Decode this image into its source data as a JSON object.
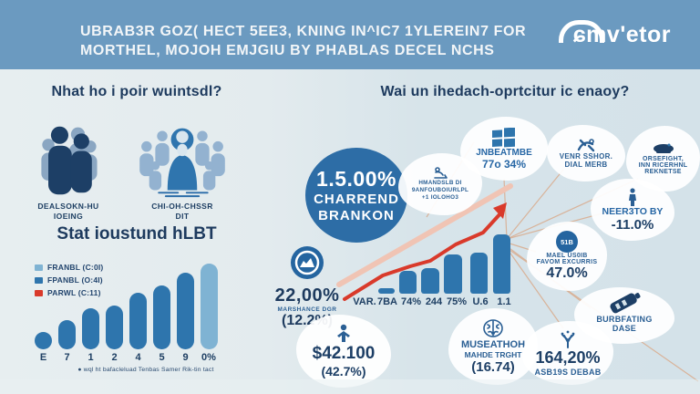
{
  "header": {
    "line1": "UBRAB3R GOZ( HECT 5EE3, KNING IN^IC7 1YLEREIN7 FOR",
    "line2": "MORTHEL, MOJOH EMJGIU BY PHABLAS DECEL NCHS",
    "logo_text": "ɕmv'etor"
  },
  "left": {
    "title": "Nhat ho i poir wuintsdl?",
    "figures": [
      {
        "icon": "people-group-icon",
        "label_line1": "DEALSOKN-HU",
        "label_line2": "IOEING"
      },
      {
        "icon": "crowd-icon",
        "label_line1": "CHI-OH-CHSSR",
        "label_line2": "DIT"
      }
    ],
    "caption": "● wql ht bafacleluad      Tenbas Samer Rik-tin tact"
  },
  "center": {
    "circle": {
      "value": "1.5.00%",
      "line1": "CHARREND",
      "line2": "BRANKON"
    },
    "stat1": {
      "value": "22,00%",
      "label": "MARSHANCE DGR",
      "sub": "(12.2%)"
    },
    "cloud": {
      "line1": "HMANDSLB DI",
      "line2": "9ANFOUBOIURLPL",
      "line3": "+1 IOLOHO3"
    },
    "stat2": {
      "value": "$42.100",
      "sub": "(42.7%)"
    },
    "stat3": {
      "line1": "MUSEATHOH",
      "line2": "MAHDE TRGHT",
      "sub": "(16.74)"
    }
  },
  "right": {
    "title": "Wai un ihedach-oprtcitur ic enaoy?",
    "bubbles": [
      {
        "line1": "JNBEATMBE",
        "line2": "77o 34%"
      },
      {
        "line1": "VENR SSHOR.",
        "line2": "DIAL MERB"
      },
      {
        "line1": "ORSEFIGHT,",
        "line2": "INN RICERHNL",
        "line3": "REKNETSE"
      },
      {
        "line1": "NEER3TO BY",
        "line2": "-11.0%"
      },
      {
        "badge": "51B",
        "line1": "MAEL US0IB",
        "line2": "FAVOM EXCURRIS",
        "line3": "47.0%"
      },
      {
        "line1": "BURBFATING",
        "line2": "DASE"
      },
      {
        "line1": "164,20%",
        "line2": "ASB19S DEBAB"
      }
    ]
  },
  "colors": {
    "header_bg": "#6b9ac0",
    "bg_left": "#e6edef",
    "bg_right": "#d6e3ea",
    "navy": "#1d3f66",
    "blue": "#2e75ad",
    "light_blue": "#7fb3d3",
    "red": "#d93a2b",
    "pink_line": "#f0c4b4",
    "tan_line": "#d9ab8d",
    "circle_blue": "#2d6da6"
  },
  "chart_data": [
    {
      "type": "bar",
      "title": "Stat ioustund hLBT",
      "categories": [
        "E",
        "7",
        "1",
        "2",
        "4",
        "5",
        "9",
        "0%"
      ],
      "values": [
        19,
        32,
        45,
        48,
        62,
        70,
        84,
        94
      ],
      "ylabel": "",
      "xlabel": "",
      "grid": false,
      "legend_position": "upper-left",
      "legend": [
        {
          "label": "FRANBL (C:0I)",
          "color": "#7fb3d3"
        },
        {
          "label": "FPANBL (O:4I)",
          "color": "#2e75ad"
        },
        {
          "label": "PARWL (C:11)",
          "color": "#d93a2b"
        }
      ],
      "bar_colors": [
        "#2e75ad",
        "#2e75ad",
        "#2e75ad",
        "#2e75ad",
        "#2e75ad",
        "#2e75ad",
        "#2e75ad",
        "#7fb3d3"
      ]
    },
    {
      "type": "bar+line",
      "categories": [
        "VAR.",
        "7BA",
        "74%",
        "244",
        "75%",
        "U.6",
        "1.1"
      ],
      "bar_values": [
        0,
        6,
        25,
        28,
        43,
        45,
        65
      ],
      "line_series": {
        "name": "red trend arrow",
        "shape": "rising",
        "color": "#d93a2b"
      },
      "title": "",
      "xlabel": "",
      "ylabel": ""
    }
  ]
}
